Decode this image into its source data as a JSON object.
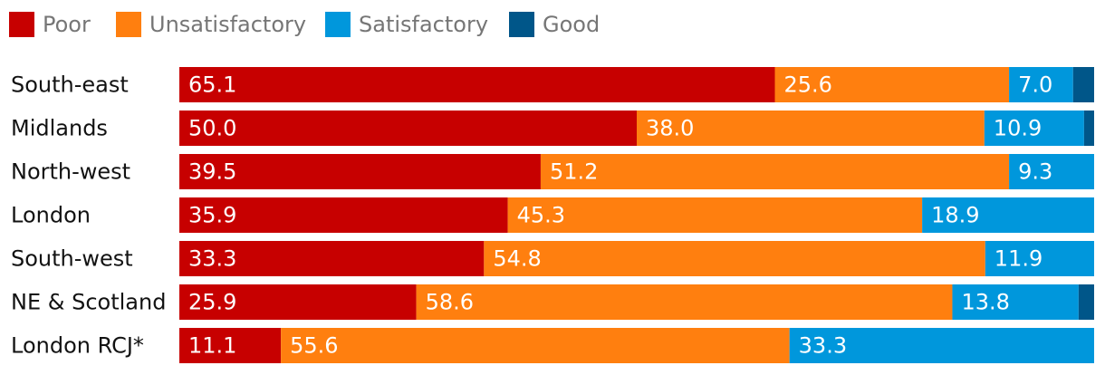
{
  "chart_data": {
    "type": "bar",
    "orientation": "horizontal",
    "stacked": true,
    "title": "",
    "xlabel": "",
    "ylabel": "",
    "xlim": [
      0,
      100
    ],
    "legend_position": "top-left",
    "categories": [
      "South-east",
      "Midlands",
      "North-west",
      "London",
      "South-west",
      "NE & Scotland",
      "London RCJ*"
    ],
    "series": [
      {
        "name": "Poor",
        "color": "#c70000",
        "values": [
          65.1,
          50.0,
          39.5,
          35.9,
          33.3,
          25.9,
          11.1
        ],
        "labels": [
          "65.1",
          "50.0",
          "39.5",
          "35.9",
          "33.3",
          "25.9",
          "11.1"
        ]
      },
      {
        "name": "Unsatisfactory",
        "color": "#ff7f0f",
        "values": [
          25.6,
          38.0,
          51.2,
          45.3,
          54.8,
          58.6,
          55.6
        ],
        "labels": [
          "25.6",
          "38.0",
          "51.2",
          "45.3",
          "54.8",
          "58.6",
          "55.6"
        ]
      },
      {
        "name": "Satisfactory",
        "color": "#0097dc",
        "values": [
          7.0,
          10.9,
          9.3,
          18.9,
          11.9,
          13.8,
          33.3
        ],
        "labels": [
          "7.0",
          "10.9",
          "9.3",
          "18.9",
          "11.9",
          "13.8",
          "33.3"
        ]
      },
      {
        "name": "Good",
        "color": "#005689",
        "values": [
          2.3,
          1.1,
          0.0,
          0.0,
          0.0,
          1.7,
          0.0
        ],
        "labels": [
          "",
          "",
          "",
          "",
          "",
          "",
          ""
        ]
      }
    ]
  }
}
